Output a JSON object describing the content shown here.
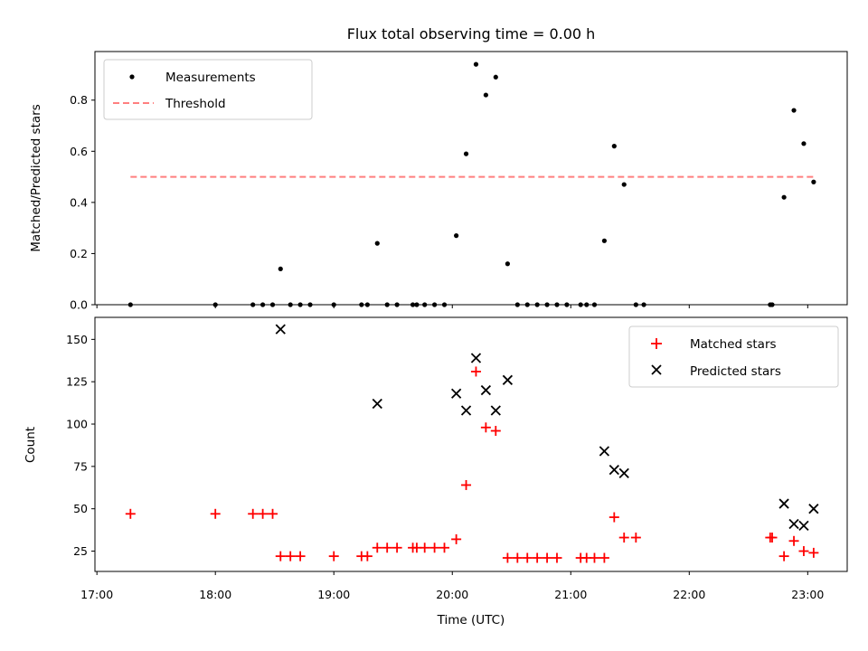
{
  "chart_data": [
    {
      "type": "scatter",
      "title": "Flux total observing time = 0.00 h",
      "xlabel": "",
      "ylabel": "Matched/Predicted stars",
      "xlim": [
        "16:59",
        "23:20"
      ],
      "ylim": [
        0,
        0.99
      ],
      "yticks": [
        0.0,
        0.2,
        0.4,
        0.6,
        0.8
      ],
      "ytick_labels": [
        "0.0",
        "0.2",
        "0.4",
        "0.6",
        "0.8"
      ],
      "legend_position": "top-left",
      "series": [
        {
          "name": "Measurements",
          "marker": "dot",
          "color": "#000000",
          "x": [
            "17:17",
            "18:00",
            "18:19",
            "18:24",
            "18:29",
            "18:33",
            "18:38",
            "18:43",
            "18:48",
            "19:00",
            "19:14",
            "19:17",
            "19:22",
            "19:27",
            "19:32",
            "19:40",
            "19:42",
            "19:46",
            "19:51",
            "19:56",
            "20:02",
            "20:07",
            "20:12",
            "20:17",
            "20:22",
            "20:28",
            "20:33",
            "20:38",
            "20:43",
            "20:48",
            "20:53",
            "20:58",
            "21:05",
            "21:08",
            "21:12",
            "21:17",
            "21:22",
            "21:27",
            "21:33",
            "21:37",
            "22:41",
            "22:42",
            "22:48",
            "22:53",
            "22:58",
            "23:03"
          ],
          "y": [
            0,
            0,
            0,
            0,
            0,
            0.14,
            0,
            0,
            0,
            0,
            0,
            0,
            0.24,
            0,
            0,
            0,
            0,
            0,
            0,
            0,
            0.27,
            0.59,
            0.94,
            0.82,
            0.89,
            0.16,
            0,
            0,
            0,
            0,
            0,
            0,
            0,
            0,
            0,
            0.25,
            0.62,
            0.47,
            0,
            0,
            0,
            0,
            0.42,
            0.76,
            0.63,
            0.48
          ]
        },
        {
          "name": "Threshold",
          "style": "dashed",
          "color": "#ff7f7f",
          "x": [
            "17:17",
            "23:03"
          ],
          "y": [
            0.5,
            0.5
          ]
        }
      ]
    },
    {
      "type": "scatter",
      "title": "",
      "xlabel": "Time (UTC)",
      "ylabel": "Count",
      "xlim": [
        "16:59",
        "23:20"
      ],
      "ylim": [
        13,
        163
      ],
      "yticks": [
        25,
        50,
        75,
        100,
        125,
        150
      ],
      "ytick_labels": [
        "25",
        "50",
        "75",
        "100",
        "125",
        "150"
      ],
      "xticks": [
        "17:00",
        "18:00",
        "19:00",
        "20:00",
        "21:00",
        "22:00",
        "23:00"
      ],
      "legend_position": "top-right",
      "series": [
        {
          "name": "Matched stars",
          "marker": "plus",
          "color": "#ff0000",
          "x": [
            "17:17",
            "18:00",
            "18:19",
            "18:24",
            "18:29",
            "18:33",
            "18:38",
            "18:43",
            "19:00",
            "19:14",
            "19:17",
            "19:22",
            "19:27",
            "19:32",
            "19:40",
            "19:42",
            "19:46",
            "19:51",
            "19:56",
            "20:02",
            "20:07",
            "20:12",
            "20:17",
            "20:22",
            "20:28",
            "20:33",
            "20:38",
            "20:43",
            "20:48",
            "20:53",
            "21:05",
            "21:08",
            "21:12",
            "21:17",
            "21:22",
            "21:27",
            "21:33",
            "22:41",
            "22:42",
            "22:48",
            "22:53",
            "22:58",
            "23:03"
          ],
          "y": [
            47,
            47,
            47,
            47,
            47,
            22,
            22,
            22,
            22,
            22,
            22,
            27,
            27,
            27,
            27,
            27,
            27,
            27,
            27,
            32,
            64,
            131,
            98,
            96,
            21,
            21,
            21,
            21,
            21,
            21,
            21,
            21,
            21,
            21,
            45,
            33,
            33,
            33,
            33,
            22,
            31,
            25,
            24
          ]
        },
        {
          "name": "Predicted stars",
          "marker": "x",
          "color": "#000000",
          "x": [
            "18:33",
            "19:22",
            "20:02",
            "20:07",
            "20:12",
            "20:17",
            "20:22",
            "20:28",
            "21:17",
            "21:22",
            "21:27",
            "22:48",
            "22:53",
            "22:58",
            "23:03"
          ],
          "y": [
            156,
            112,
            118,
            108,
            139,
            120,
            108,
            126,
            84,
            73,
            71,
            53,
            41,
            40,
            50
          ]
        }
      ]
    }
  ]
}
